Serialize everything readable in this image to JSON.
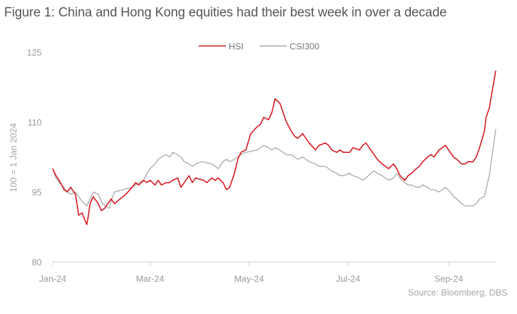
{
  "title": "Figure 1: China and Hong Kong equities had their best week in over a decade",
  "source": "Source: Bloomberg, DBS",
  "chart_data": {
    "type": "line",
    "ylabel": "100 = 1 Jan 2024",
    "xlabel": "",
    "ylim": [
      80,
      125
    ],
    "yticks": [
      80,
      95,
      110,
      125
    ],
    "x_tick_labels": [
      "Jan-24",
      "Mar-24",
      "May-24",
      "Jul-24",
      "Sep-24"
    ],
    "x_tick_dates": [
      "2024-01-01",
      "2024-03-01",
      "2024-05-01",
      "2024-07-01",
      "2024-09-01"
    ],
    "x_range": [
      "2024-01-01",
      "2024-09-30"
    ],
    "legend_position": "top-center",
    "grid": false,
    "series": [
      {
        "name": "HSI",
        "color": "#d7141a",
        "points": [
          [
            "2024-01-01",
            100
          ],
          [
            "2024-01-03",
            98.5
          ],
          [
            "2024-01-05",
            97.5
          ],
          [
            "2024-01-08",
            95.5
          ],
          [
            "2024-01-10",
            95
          ],
          [
            "2024-01-12",
            96
          ],
          [
            "2024-01-15",
            94.5
          ],
          [
            "2024-01-17",
            90
          ],
          [
            "2024-01-19",
            90.5
          ],
          [
            "2024-01-22",
            88
          ],
          [
            "2024-01-23",
            90
          ],
          [
            "2024-01-24",
            92.5
          ],
          [
            "2024-01-26",
            94
          ],
          [
            "2024-01-29",
            92.5
          ],
          [
            "2024-01-31",
            91
          ],
          [
            "2024-02-02",
            91.5
          ],
          [
            "2024-02-05",
            93
          ],
          [
            "2024-02-06",
            93.5
          ],
          [
            "2024-02-08",
            92.5
          ],
          [
            "2024-02-15",
            94.5
          ],
          [
            "2024-02-19",
            96
          ],
          [
            "2024-02-21",
            97
          ],
          [
            "2024-02-23",
            96.5
          ],
          [
            "2024-02-26",
            97.5
          ],
          [
            "2024-02-28",
            97
          ],
          [
            "2024-03-01",
            97.5
          ],
          [
            "2024-03-04",
            96.5
          ],
          [
            "2024-03-06",
            97.5
          ],
          [
            "2024-03-08",
            96.5
          ],
          [
            "2024-03-11",
            97
          ],
          [
            "2024-03-13",
            97
          ],
          [
            "2024-03-15",
            97.5
          ],
          [
            "2024-03-18",
            98
          ],
          [
            "2024-03-20",
            96
          ],
          [
            "2024-03-22",
            97
          ],
          [
            "2024-03-25",
            98.5
          ],
          [
            "2024-03-27",
            97
          ],
          [
            "2024-03-29",
            98
          ],
          [
            "2024-04-03",
            97.5
          ],
          [
            "2024-04-05",
            97
          ],
          [
            "2024-04-08",
            98
          ],
          [
            "2024-04-10",
            97.5
          ],
          [
            "2024-04-12",
            98
          ],
          [
            "2024-04-15",
            97
          ],
          [
            "2024-04-17",
            95.5
          ],
          [
            "2024-04-19",
            96
          ],
          [
            "2024-04-22",
            99
          ],
          [
            "2024-04-24",
            102
          ],
          [
            "2024-04-26",
            103.5
          ],
          [
            "2024-04-29",
            104
          ],
          [
            "2024-05-02",
            107.5
          ],
          [
            "2024-05-06",
            109
          ],
          [
            "2024-05-08",
            109.5
          ],
          [
            "2024-05-10",
            111
          ],
          [
            "2024-05-13",
            110.5
          ],
          [
            "2024-05-15",
            112
          ],
          [
            "2024-05-17",
            115
          ],
          [
            "2024-05-20",
            114
          ],
          [
            "2024-05-22",
            112
          ],
          [
            "2024-05-24",
            110
          ],
          [
            "2024-05-27",
            108
          ],
          [
            "2024-05-29",
            107
          ],
          [
            "2024-05-31",
            106.5
          ],
          [
            "2024-06-03",
            107.5
          ],
          [
            "2024-06-05",
            106.5
          ],
          [
            "2024-06-07",
            105.5
          ],
          [
            "2024-06-11",
            104
          ],
          [
            "2024-06-13",
            105
          ],
          [
            "2024-06-17",
            105.5
          ],
          [
            "2024-06-19",
            105
          ],
          [
            "2024-06-21",
            104
          ],
          [
            "2024-06-24",
            103.5
          ],
          [
            "2024-06-26",
            104
          ],
          [
            "2024-06-28",
            103.5
          ],
          [
            "2024-07-02",
            103.5
          ],
          [
            "2024-07-04",
            104.5
          ],
          [
            "2024-07-08",
            104
          ],
          [
            "2024-07-10",
            105
          ],
          [
            "2024-07-12",
            105.5
          ],
          [
            "2024-07-15",
            104
          ],
          [
            "2024-07-17",
            103
          ],
          [
            "2024-07-19",
            102
          ],
          [
            "2024-07-22",
            101
          ],
          [
            "2024-07-24",
            100.5
          ],
          [
            "2024-07-26",
            100
          ],
          [
            "2024-07-29",
            101
          ],
          [
            "2024-07-31",
            100
          ],
          [
            "2024-08-02",
            98.5
          ],
          [
            "2024-08-05",
            97.5
          ],
          [
            "2024-08-07",
            98.5
          ],
          [
            "2024-08-09",
            99
          ],
          [
            "2024-08-12",
            100
          ],
          [
            "2024-08-14",
            100.5
          ],
          [
            "2024-08-16",
            101.5
          ],
          [
            "2024-08-19",
            102.5
          ],
          [
            "2024-08-21",
            103
          ],
          [
            "2024-08-23",
            102.5
          ],
          [
            "2024-08-26",
            104
          ],
          [
            "2024-08-28",
            104.5
          ],
          [
            "2024-08-30",
            105
          ],
          [
            "2024-09-02",
            103.5
          ],
          [
            "2024-09-04",
            102.5
          ],
          [
            "2024-09-06",
            102
          ],
          [
            "2024-09-09",
            101
          ],
          [
            "2024-09-11",
            101
          ],
          [
            "2024-09-13",
            101.5
          ],
          [
            "2024-09-16",
            101.5
          ],
          [
            "2024-09-18",
            102.5
          ],
          [
            "2024-09-20",
            104.5
          ],
          [
            "2024-09-23",
            108
          ],
          [
            "2024-09-24",
            111
          ],
          [
            "2024-09-26",
            113
          ],
          [
            "2024-09-30",
            121
          ]
        ]
      },
      {
        "name": "CSI300",
        "color": "#a6a6a6",
        "points": [
          [
            "2024-01-01",
            100
          ],
          [
            "2024-01-03",
            98
          ],
          [
            "2024-01-05",
            97
          ],
          [
            "2024-01-08",
            96
          ],
          [
            "2024-01-10",
            95
          ],
          [
            "2024-01-12",
            94.5
          ],
          [
            "2024-01-15",
            95
          ],
          [
            "2024-01-17",
            94
          ],
          [
            "2024-01-19",
            93
          ],
          [
            "2024-01-22",
            92
          ],
          [
            "2024-01-24",
            93.5
          ],
          [
            "2024-01-26",
            95
          ],
          [
            "2024-01-29",
            94.5
          ],
          [
            "2024-01-31",
            93
          ],
          [
            "2024-02-02",
            92
          ],
          [
            "2024-02-05",
            91.5
          ],
          [
            "2024-02-06",
            93
          ],
          [
            "2024-02-08",
            95
          ],
          [
            "2024-02-19",
            96
          ],
          [
            "2024-02-21",
            96.5
          ],
          [
            "2024-02-23",
            97
          ],
          [
            "2024-02-26",
            97.5
          ],
          [
            "2024-02-28",
            99
          ],
          [
            "2024-03-01",
            100
          ],
          [
            "2024-03-04",
            101
          ],
          [
            "2024-03-06",
            102
          ],
          [
            "2024-03-08",
            102.5
          ],
          [
            "2024-03-11",
            103
          ],
          [
            "2024-03-13",
            102.5
          ],
          [
            "2024-03-15",
            103.5
          ],
          [
            "2024-03-18",
            103
          ],
          [
            "2024-03-20",
            102.5
          ],
          [
            "2024-03-22",
            101.5
          ],
          [
            "2024-03-25",
            101
          ],
          [
            "2024-03-27",
            100.5
          ],
          [
            "2024-03-29",
            101
          ],
          [
            "2024-04-02",
            101.5
          ],
          [
            "2024-04-08",
            101
          ],
          [
            "2024-04-10",
            100.5
          ],
          [
            "2024-04-12",
            100
          ],
          [
            "2024-04-15",
            101.5
          ],
          [
            "2024-04-17",
            102
          ],
          [
            "2024-04-19",
            101.5
          ],
          [
            "2024-04-22",
            102
          ],
          [
            "2024-04-24",
            102.5
          ],
          [
            "2024-04-26",
            103
          ],
          [
            "2024-04-29",
            103.5
          ],
          [
            "2024-05-06",
            104
          ],
          [
            "2024-05-08",
            104.5
          ],
          [
            "2024-05-10",
            105
          ],
          [
            "2024-05-13",
            104.5
          ],
          [
            "2024-05-15",
            104
          ],
          [
            "2024-05-17",
            104.5
          ],
          [
            "2024-05-20",
            104
          ],
          [
            "2024-05-22",
            103.5
          ],
          [
            "2024-05-24",
            103
          ],
          [
            "2024-05-27",
            103
          ],
          [
            "2024-05-29",
            102.5
          ],
          [
            "2024-05-31",
            102
          ],
          [
            "2024-06-03",
            102.5
          ],
          [
            "2024-06-05",
            102
          ],
          [
            "2024-06-07",
            101.5
          ],
          [
            "2024-06-11",
            101
          ],
          [
            "2024-06-13",
            100.5
          ],
          [
            "2024-06-17",
            100.5
          ],
          [
            "2024-06-19",
            100
          ],
          [
            "2024-06-21",
            99.5
          ],
          [
            "2024-06-24",
            99
          ],
          [
            "2024-06-26",
            98.5
          ],
          [
            "2024-06-28",
            98.5
          ],
          [
            "2024-07-02",
            99
          ],
          [
            "2024-07-04",
            98.5
          ],
          [
            "2024-07-08",
            98
          ],
          [
            "2024-07-10",
            97.5
          ],
          [
            "2024-07-12",
            98
          ],
          [
            "2024-07-15",
            99
          ],
          [
            "2024-07-17",
            99.5
          ],
          [
            "2024-07-19",
            99
          ],
          [
            "2024-07-22",
            98.5
          ],
          [
            "2024-07-24",
            98
          ],
          [
            "2024-07-26",
            97.5
          ],
          [
            "2024-07-29",
            98
          ],
          [
            "2024-07-31",
            99
          ],
          [
            "2024-08-02",
            98
          ],
          [
            "2024-08-05",
            97
          ],
          [
            "2024-08-07",
            96.5
          ],
          [
            "2024-08-09",
            96.5
          ],
          [
            "2024-08-12",
            96
          ],
          [
            "2024-08-14",
            96
          ],
          [
            "2024-08-16",
            96.5
          ],
          [
            "2024-08-19",
            96
          ],
          [
            "2024-08-21",
            95.5
          ],
          [
            "2024-08-23",
            95.5
          ],
          [
            "2024-08-26",
            95
          ],
          [
            "2024-08-28",
            95.5
          ],
          [
            "2024-08-30",
            96
          ],
          [
            "2024-09-02",
            95
          ],
          [
            "2024-09-04",
            94
          ],
          [
            "2024-09-06",
            93.5
          ],
          [
            "2024-09-09",
            92.5
          ],
          [
            "2024-09-11",
            92
          ],
          [
            "2024-09-13",
            92
          ],
          [
            "2024-09-16",
            92
          ],
          [
            "2024-09-18",
            92.5
          ],
          [
            "2024-09-20",
            93.5
          ],
          [
            "2024-09-23",
            94
          ],
          [
            "2024-09-24",
            95.5
          ],
          [
            "2024-09-26",
            98.5
          ],
          [
            "2024-09-30",
            108.5
          ]
        ]
      }
    ]
  }
}
